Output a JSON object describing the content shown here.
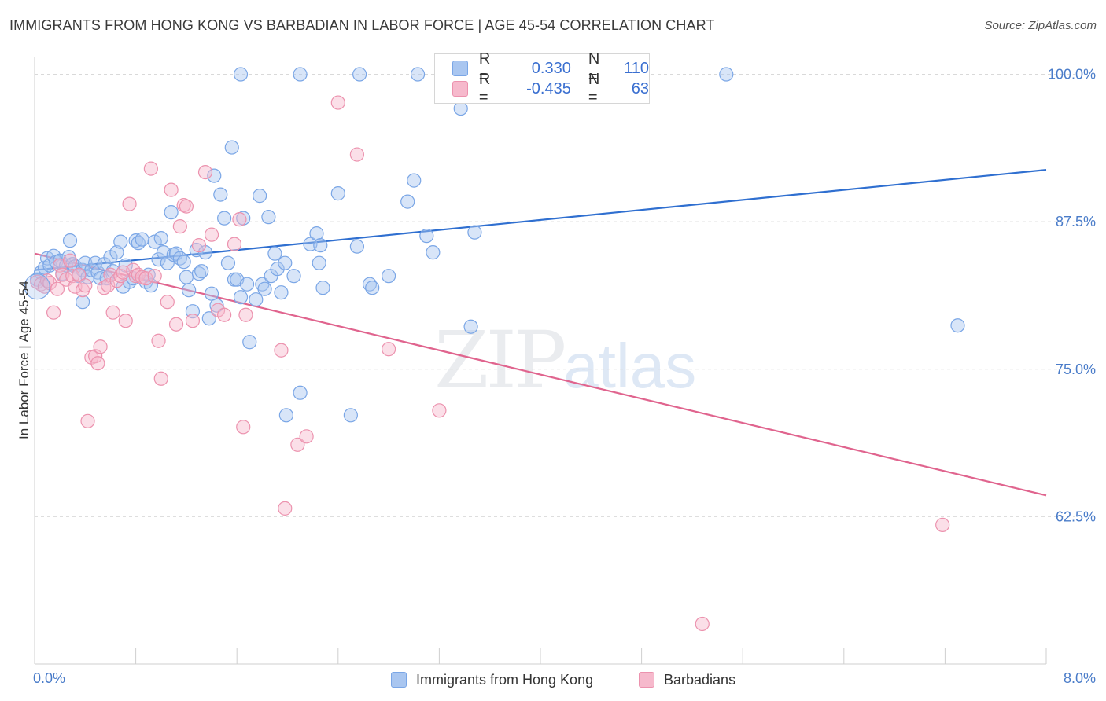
{
  "title": "IMMIGRANTS FROM HONG KONG VS BARBADIAN IN LABOR FORCE | AGE 45-54 CORRELATION CHART",
  "source": "Source: ZipAtlas.com",
  "watermark": {
    "zip": "ZIP",
    "atlas": "atlas"
  },
  "legend": {
    "rows": [
      {
        "r_label": "R =",
        "r_value": "0.330",
        "n_label": "N =",
        "n_value": "110",
        "color": "#a9c6f0",
        "border": "#7aa6e6"
      },
      {
        "r_label": "R =",
        "r_value": "-0.435",
        "n_label": "N =",
        "n_value": "63",
        "color": "#f6b9cc",
        "border": "#ec92ae"
      }
    ]
  },
  "bottom_legend": [
    {
      "label": "Immigrants from Hong Kong",
      "color": "#a9c6f0",
      "border": "#7aa6e6"
    },
    {
      "label": "Barbadians",
      "color": "#f6b9cc",
      "border": "#ec92ae"
    }
  ],
  "chart_data": {
    "type": "scatter",
    "title": "IMMIGRANTS FROM HONG KONG VS BARBADIAN IN LABOR FORCE | AGE 45-54 CORRELATION CHART",
    "xlabel": "",
    "ylabel": "In Labor Force | Age 45-54",
    "xlim": [
      0,
      8
    ],
    "ylim": [
      50,
      101.5
    ],
    "x_tick_labels": [
      "0.0%",
      "8.0%"
    ],
    "y_ticks": [
      62.5,
      75,
      87.5,
      100
    ],
    "y_tick_labels": [
      "62.5%",
      "75.0%",
      "87.5%",
      "100.0%"
    ],
    "grid": true,
    "series": [
      {
        "name": "Immigrants from Hong Kong",
        "color": "#7aa6e6",
        "fill": "rgba(169,198,240,0.45)",
        "trend": {
          "x": [
            0,
            8
          ],
          "y": [
            83.4,
            91.9
          ],
          "color": "#2f6fd0"
        },
        "points": [
          [
            0.02,
            82.6
          ],
          [
            0.05,
            83.2
          ],
          [
            0.08,
            83.6
          ],
          [
            0.1,
            84.4
          ],
          [
            0.12,
            83.8
          ],
          [
            0.15,
            84.6
          ],
          [
            0.17,
            84.1
          ],
          [
            0.2,
            84.2
          ],
          [
            0.22,
            83.1
          ],
          [
            0.25,
            83.8
          ],
          [
            0.27,
            84.5
          ],
          [
            0.28,
            85.9
          ],
          [
            0.3,
            83.9
          ],
          [
            0.32,
            83.7
          ],
          [
            0.35,
            82.9
          ],
          [
            0.38,
            83.4
          ],
          [
            0.4,
            84.0
          ],
          [
            0.42,
            82.8
          ],
          [
            0.45,
            83.4
          ],
          [
            0.48,
            84.0
          ],
          [
            0.5,
            83.2
          ],
          [
            0.52,
            82.7
          ],
          [
            0.55,
            83.9
          ],
          [
            0.57,
            82.7
          ],
          [
            0.6,
            84.5
          ],
          [
            0.62,
            83.3
          ],
          [
            0.65,
            84.9
          ],
          [
            0.68,
            85.8
          ],
          [
            0.7,
            82.0
          ],
          [
            0.72,
            83.8
          ],
          [
            0.75,
            82.4
          ],
          [
            0.78,
            82.7
          ],
          [
            0.8,
            85.9
          ],
          [
            0.82,
            85.7
          ],
          [
            0.85,
            86.0
          ],
          [
            0.88,
            82.4
          ],
          [
            0.9,
            83.0
          ],
          [
            0.92,
            82.1
          ],
          [
            0.95,
            85.8
          ],
          [
            0.98,
            84.3
          ],
          [
            1.0,
            86.1
          ],
          [
            1.02,
            84.9
          ],
          [
            1.05,
            84.0
          ],
          [
            1.08,
            88.3
          ],
          [
            1.1,
            84.7
          ],
          [
            1.12,
            84.8
          ],
          [
            1.15,
            84.4
          ],
          [
            1.18,
            84.1
          ],
          [
            1.2,
            82.8
          ],
          [
            1.22,
            81.7
          ],
          [
            1.25,
            79.9
          ],
          [
            1.28,
            85.1
          ],
          [
            1.3,
            83.1
          ],
          [
            1.32,
            83.3
          ],
          [
            1.35,
            84.9
          ],
          [
            1.38,
            79.3
          ],
          [
            1.4,
            81.4
          ],
          [
            1.42,
            91.4
          ],
          [
            1.44,
            80.4
          ],
          [
            1.47,
            89.8
          ],
          [
            1.5,
            87.8
          ],
          [
            1.53,
            84.0
          ],
          [
            1.56,
            93.8
          ],
          [
            1.58,
            82.6
          ],
          [
            1.6,
            82.6
          ],
          [
            1.63,
            81.1
          ],
          [
            1.65,
            87.8
          ],
          [
            1.68,
            82.2
          ],
          [
            1.7,
            77.3
          ],
          [
            1.75,
            80.9
          ],
          [
            1.78,
            89.7
          ],
          [
            1.8,
            82.2
          ],
          [
            1.82,
            81.8
          ],
          [
            1.85,
            87.9
          ],
          [
            1.87,
            82.9
          ],
          [
            1.9,
            84.8
          ],
          [
            1.92,
            83.5
          ],
          [
            1.95,
            81.5
          ],
          [
            1.98,
            84.0
          ],
          [
            2.05,
            82.9
          ],
          [
            2.1,
            73.0
          ],
          [
            2.18,
            85.6
          ],
          [
            2.23,
            86.5
          ],
          [
            2.25,
            84.0
          ],
          [
            2.26,
            85.5
          ],
          [
            2.28,
            81.9
          ],
          [
            2.4,
            89.9
          ],
          [
            2.5,
            71.1
          ],
          [
            2.55,
            85.4
          ],
          [
            2.65,
            82.2
          ],
          [
            2.67,
            81.9
          ],
          [
            2.8,
            82.9
          ],
          [
            2.95,
            89.2
          ],
          [
            3.0,
            91.0
          ],
          [
            3.1,
            86.3
          ],
          [
            3.15,
            84.9
          ],
          [
            3.45,
            78.6
          ],
          [
            3.48,
            86.6
          ],
          [
            1.63,
            100.0
          ],
          [
            2.1,
            100.0
          ],
          [
            2.57,
            100.0
          ],
          [
            3.03,
            100.0
          ],
          [
            3.48,
            100.0
          ],
          [
            3.94,
            99.9
          ],
          [
            5.47,
            100.0
          ],
          [
            3.37,
            97.1
          ],
          [
            1.99,
            71.1
          ],
          [
            7.3,
            78.7
          ],
          [
            0.38,
            80.7
          ]
        ]
      },
      {
        "name": "Barbadians",
        "color": "#ec92ae",
        "fill": "rgba(246,185,204,0.45)",
        "trend": {
          "x": [
            0,
            8
          ],
          "y": [
            84.8,
            64.3
          ],
          "color": "#e0648e"
        },
        "points": [
          [
            0.02,
            82.4
          ],
          [
            0.05,
            82.2
          ],
          [
            0.08,
            82.0
          ],
          [
            0.1,
            82.5
          ],
          [
            0.12,
            82.3
          ],
          [
            0.15,
            79.8
          ],
          [
            0.18,
            81.8
          ],
          [
            0.2,
            83.8
          ],
          [
            0.22,
            83.0
          ],
          [
            0.25,
            82.6
          ],
          [
            0.28,
            84.2
          ],
          [
            0.3,
            82.9
          ],
          [
            0.32,
            82.0
          ],
          [
            0.35,
            83.0
          ],
          [
            0.38,
            81.7
          ],
          [
            0.4,
            82.1
          ],
          [
            0.42,
            70.6
          ],
          [
            0.45,
            76.0
          ],
          [
            0.48,
            76.1
          ],
          [
            0.5,
            75.5
          ],
          [
            0.52,
            76.9
          ],
          [
            0.55,
            81.9
          ],
          [
            0.58,
            82.1
          ],
          [
            0.6,
            83.0
          ],
          [
            0.62,
            79.8
          ],
          [
            0.65,
            82.5
          ],
          [
            0.68,
            82.9
          ],
          [
            0.7,
            83.2
          ],
          [
            0.72,
            79.1
          ],
          [
            0.75,
            89.0
          ],
          [
            0.78,
            83.4
          ],
          [
            0.8,
            82.9
          ],
          [
            0.82,
            83.0
          ],
          [
            0.85,
            82.8
          ],
          [
            0.88,
            82.7
          ],
          [
            0.92,
            92.0
          ],
          [
            0.95,
            82.9
          ],
          [
            0.98,
            77.4
          ],
          [
            1.0,
            74.2
          ],
          [
            1.05,
            80.7
          ],
          [
            1.08,
            90.2
          ],
          [
            1.12,
            78.8
          ],
          [
            1.15,
            87.1
          ],
          [
            1.18,
            88.9
          ],
          [
            1.2,
            88.8
          ],
          [
            1.25,
            79.1
          ],
          [
            1.3,
            85.5
          ],
          [
            1.35,
            91.7
          ],
          [
            1.4,
            86.4
          ],
          [
            1.45,
            80.0
          ],
          [
            1.5,
            79.6
          ],
          [
            1.58,
            85.6
          ],
          [
            1.62,
            87.7
          ],
          [
            1.65,
            70.1
          ],
          [
            1.67,
            79.6
          ],
          [
            1.95,
            76.6
          ],
          [
            2.08,
            68.6
          ],
          [
            2.15,
            69.3
          ],
          [
            2.4,
            97.6
          ],
          [
            2.55,
            93.2
          ],
          [
            2.8,
            76.7
          ],
          [
            3.2,
            71.5
          ],
          [
            1.98,
            63.2
          ],
          [
            7.18,
            61.8
          ],
          [
            5.28,
            53.4
          ]
        ]
      }
    ]
  }
}
